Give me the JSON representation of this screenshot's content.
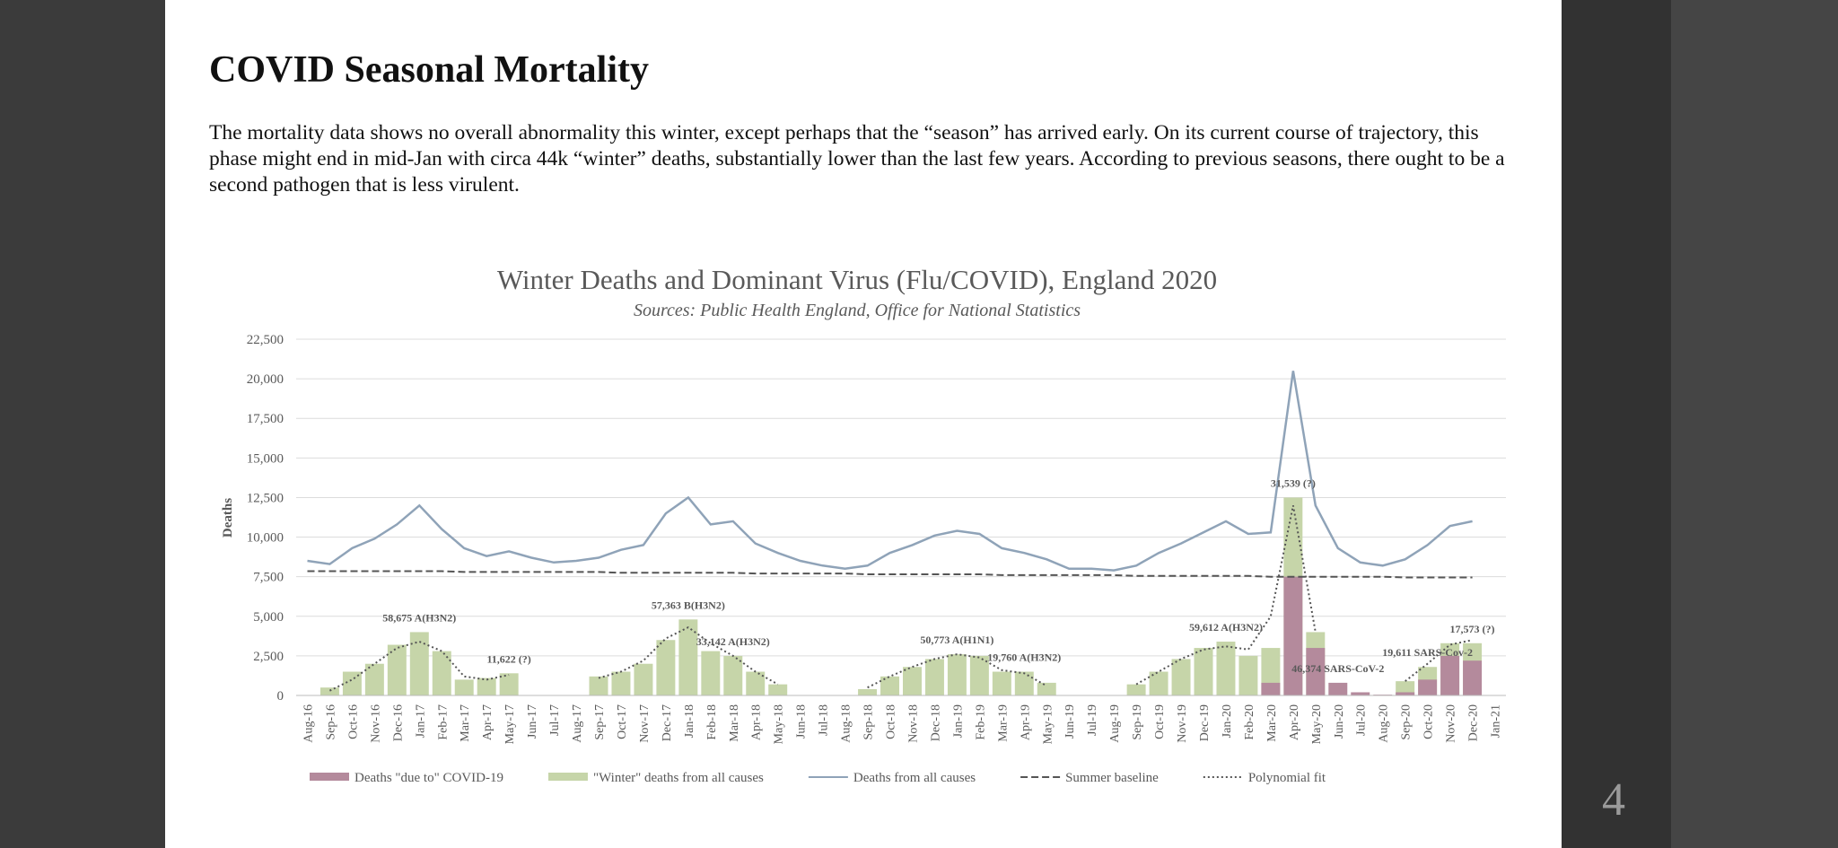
{
  "slide": {
    "title": "COVID Seasonal Mortality",
    "body": "The mortality data shows no overall abnormality this winter, except perhaps that the “season” has arrived early. On its current course of trajectory, this phase might end in mid-Jan with circa 44k “winter” deaths, substantially lower than the last few years. According to previous seasons, there ought to be a second pathogen that is less virulent.",
    "page_number": "4"
  },
  "chart_data": {
    "type": "combo",
    "title": "Winter Deaths and Dominant Virus (Flu/COVID), England 2020",
    "subtitle": "Sources: Public Health England, Office for National Statistics",
    "y_label": "Deaths",
    "categories": [
      "Aug-16",
      "Sep-16",
      "Oct-16",
      "Nov-16",
      "Dec-16",
      "Jan-17",
      "Feb-17",
      "Mar-17",
      "Apr-17",
      "May-17",
      "Jun-17",
      "Jul-17",
      "Aug-17",
      "Sep-17",
      "Oct-17",
      "Nov-17",
      "Dec-17",
      "Jan-18",
      "Feb-18",
      "Mar-18",
      "Apr-18",
      "May-18",
      "Jun-18",
      "Jul-18",
      "Aug-18",
      "Sep-18",
      "Oct-18",
      "Nov-18",
      "Dec-18",
      "Jan-19",
      "Feb-19",
      "Mar-19",
      "Apr-19",
      "May-19",
      "Jun-19",
      "Jul-19",
      "Aug-19",
      "Sep-19",
      "Oct-19",
      "Nov-19",
      "Dec-19",
      "Jan-20",
      "Feb-20",
      "Mar-20",
      "Apr-20",
      "May-20",
      "Jun-20",
      "Jul-20",
      "Aug-20",
      "Sep-20",
      "Oct-20",
      "Nov-20",
      "Dec-20",
      "Jan-21"
    ],
    "series": [
      {
        "name": "Deaths \"due to\" COVID-19",
        "kind": "bar",
        "color": "#b48a9c",
        "values": [
          0,
          0,
          0,
          0,
          0,
          0,
          0,
          0,
          0,
          0,
          0,
          0,
          0,
          0,
          0,
          0,
          0,
          0,
          0,
          0,
          0,
          0,
          0,
          0,
          0,
          0,
          0,
          0,
          0,
          0,
          0,
          0,
          0,
          0,
          0,
          0,
          0,
          0,
          0,
          0,
          0,
          0,
          0,
          800,
          7500,
          3000,
          800,
          200,
          50,
          200,
          1000,
          2500,
          2200,
          0
        ]
      },
      {
        "name": "\"Winter\" deaths from all causes",
        "kind": "bar",
        "color": "#c6d5a9",
        "values": [
          0,
          500,
          1500,
          2000,
          3200,
          4000,
          2800,
          1000,
          1100,
          1400,
          0,
          0,
          0,
          1200,
          1500,
          2000,
          3500,
          4800,
          2800,
          2500,
          1500,
          700,
          0,
          0,
          0,
          400,
          1200,
          1800,
          2300,
          2600,
          2500,
          1500,
          1500,
          800,
          0,
          0,
          0,
          700,
          1500,
          2300,
          3000,
          3400,
          2500,
          3000,
          12500,
          4000,
          0,
          0,
          0,
          900,
          1800,
          3300,
          3300,
          0
        ]
      },
      {
        "name": "Deaths from all causes",
        "kind": "line",
        "style": "solid",
        "color": "#8fa3b8",
        "values": [
          8500,
          8300,
          9300,
          9900,
          10800,
          12000,
          10500,
          9300,
          8800,
          9100,
          8700,
          8400,
          8500,
          8700,
          9200,
          9500,
          11500,
          12500,
          10800,
          11000,
          9600,
          9000,
          8500,
          8200,
          8000,
          8200,
          9000,
          9500,
          10100,
          10400,
          10200,
          9300,
          9000,
          8600,
          8000,
          8000,
          7900,
          8200,
          9000,
          9600,
          10300,
          11000,
          10200,
          10300,
          20500,
          12000,
          9300,
          8400,
          8200,
          8600,
          9500,
          10700,
          11000,
          null
        ]
      },
      {
        "name": "Summer baseline",
        "kind": "line",
        "style": "dashed",
        "color": "#555555",
        "values": [
          7850,
          7850,
          7850,
          7850,
          7850,
          7850,
          7850,
          7800,
          7800,
          7800,
          7800,
          7800,
          7800,
          7800,
          7750,
          7750,
          7750,
          7750,
          7750,
          7750,
          7700,
          7700,
          7700,
          7700,
          7700,
          7650,
          7650,
          7650,
          7650,
          7650,
          7650,
          7600,
          7600,
          7600,
          7600,
          7600,
          7600,
          7550,
          7550,
          7550,
          7550,
          7550,
          7550,
          7500,
          7500,
          7500,
          7500,
          7500,
          7500,
          7450,
          7450,
          7450,
          7450,
          null
        ]
      },
      {
        "name": "Polynomial fit",
        "kind": "line",
        "style": "dotted",
        "color": "#555555",
        "values": [
          null,
          300,
          1000,
          2000,
          3000,
          3400,
          2800,
          1200,
          1000,
          1300,
          null,
          null,
          null,
          1100,
          1500,
          2200,
          3600,
          4300,
          3300,
          2500,
          1500,
          700,
          null,
          null,
          null,
          500,
          1200,
          1800,
          2300,
          2600,
          2400,
          1600,
          1400,
          600,
          null,
          null,
          null,
          700,
          1500,
          2300,
          2900,
          3100,
          2900,
          5000,
          12000,
          4000,
          null,
          null,
          null,
          900,
          2000,
          3200,
          3500,
          null
        ]
      }
    ],
    "annotations": [
      {
        "text": "58,675 A(H3N2)",
        "category": "Jan-17"
      },
      {
        "text": "11,622 (?)",
        "category": "May-17"
      },
      {
        "text": "57,363 B(H3N2)",
        "category": "Jan-18"
      },
      {
        "text": "33,142 A(H3N2)",
        "category": "Mar-18"
      },
      {
        "text": "50,773 A(H1N1)",
        "category": "Jan-19"
      },
      {
        "text": "19,760 A(H3N2)",
        "category": "Apr-19"
      },
      {
        "text": "59,612 A(H3N2)",
        "category": "Jan-20"
      },
      {
        "text": "31,539 (?)",
        "category": "Apr-20"
      },
      {
        "text": "46,374 SARS-CoV-2",
        "category": "Jun-20"
      },
      {
        "text": "17,573 (?)",
        "category": "Dec-20"
      },
      {
        "text": "19,611 SARS-Cov-2",
        "category": "Oct-20"
      }
    ],
    "ylim": [
      0,
      22500
    ],
    "yticks": [
      0,
      {
        "value": 2500,
        "label": "2,500"
      },
      {
        "value": 5000,
        "label": "5,000"
      },
      {
        "value": 7500,
        "label": "7,500"
      },
      {
        "value": 10000,
        "label": "10,000"
      },
      {
        "value": 12500,
        "label": "12,500"
      },
      {
        "value": 15000,
        "label": "15,000"
      },
      {
        "value": 17500,
        "label": "17,500"
      },
      {
        "value": 20000,
        "label": "20,000"
      },
      {
        "value": 22500,
        "label": "22,500"
      }
    ],
    "grid": true
  }
}
